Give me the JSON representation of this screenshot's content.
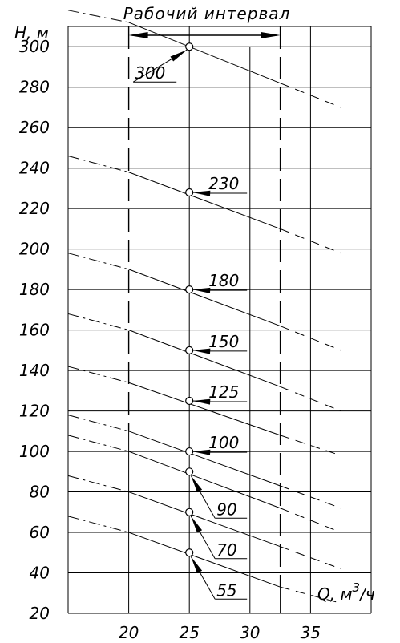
{
  "chart_data": {
    "type": "line",
    "title": "Рабочий интервал",
    "ylabel": "H, м",
    "xlabel_prefix": "Q, м",
    "xlabel_sup": "3",
    "xlabel_suffix": "/ч",
    "xlim": [
      15,
      40
    ],
    "ylim": [
      20,
      310
    ],
    "x_ticks": [
      20,
      25,
      30,
      35
    ],
    "y_ticks": [
      20,
      40,
      60,
      80,
      100,
      120,
      140,
      160,
      180,
      200,
      220,
      240,
      260,
      280,
      300
    ],
    "working_interval": [
      20,
      32.5
    ],
    "operating_flow": 25,
    "series": [
      {
        "name": "300",
        "points": [
          [
            15,
            318
          ],
          [
            20,
            312
          ],
          [
            32.5,
            282
          ],
          [
            37.5,
            270
          ]
        ],
        "operating_point": [
          25,
          300
        ]
      },
      {
        "name": "230",
        "points": [
          [
            15,
            246
          ],
          [
            20,
            238
          ],
          [
            32.5,
            210
          ],
          [
            37.5,
            198
          ]
        ],
        "operating_point": [
          25,
          228
        ]
      },
      {
        "name": "180",
        "points": [
          [
            15,
            198
          ],
          [
            20,
            190
          ],
          [
            32.5,
            162
          ],
          [
            37.5,
            150
          ]
        ],
        "operating_point": [
          25,
          180
        ]
      },
      {
        "name": "150",
        "points": [
          [
            15,
            168
          ],
          [
            20,
            160
          ],
          [
            32.5,
            132
          ],
          [
            37.5,
            120
          ]
        ],
        "operating_point": [
          25,
          150
        ]
      },
      {
        "name": "125",
        "points": [
          [
            15,
            142
          ],
          [
            20,
            134
          ],
          [
            32.5,
            108
          ],
          [
            37.5,
            98
          ]
        ],
        "operating_point": [
          25,
          125
        ]
      },
      {
        "name": "100",
        "points": [
          [
            15,
            118
          ],
          [
            20,
            110
          ],
          [
            32.5,
            83
          ],
          [
            37.5,
            72
          ]
        ],
        "operating_point": [
          25,
          100
        ]
      },
      {
        "name": "90",
        "points": [
          [
            15,
            108
          ],
          [
            20,
            100
          ],
          [
            32.5,
            72
          ],
          [
            37.5,
            60
          ]
        ],
        "operating_point": [
          25,
          90
        ]
      },
      {
        "name": "70",
        "points": [
          [
            15,
            88
          ],
          [
            20,
            80
          ],
          [
            32.5,
            53
          ],
          [
            37.5,
            42
          ]
        ],
        "operating_point": [
          25,
          70
        ]
      },
      {
        "name": "55",
        "points": [
          [
            15,
            68
          ],
          [
            20,
            60
          ],
          [
            32.5,
            33
          ],
          [
            37.5,
            25
          ]
        ],
        "operating_point": [
          25,
          50
        ]
      }
    ]
  }
}
